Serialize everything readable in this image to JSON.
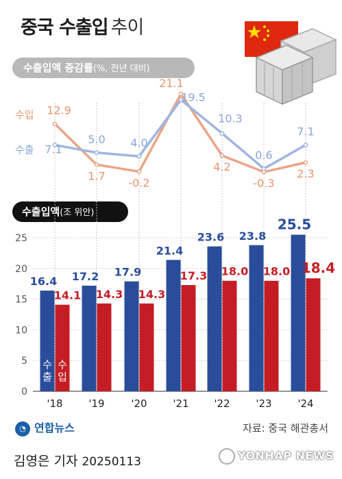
{
  "title": {
    "main": "중국 수출입",
    "sub": "추이"
  },
  "growth_section": {
    "label_strong": "수출입액 증감률",
    "label_light": "(%, 전년 대비)"
  },
  "value_section": {
    "label_strong": "수출입액",
    "label_light": "(조 위안)"
  },
  "legend": {
    "import": "수입",
    "export": "수출"
  },
  "source": "자료: 중국 해관총서",
  "agency": "연합뉴스",
  "byline": {
    "name": "김영은 기자",
    "date": "20250113"
  },
  "watermark": "YONHAP NEWS",
  "colors": {
    "export": "#2a4d9b",
    "import": "#c41e24",
    "export_line": "#9db6e0",
    "import_line": "#eba485"
  },
  "chart_data": [
    {
      "type": "line",
      "title": "수출입액 증감률",
      "ylabel": "%, 전년 대비",
      "x": [
        "'18",
        "'19",
        "'20",
        "'21",
        "'22",
        "'23",
        "'24"
      ],
      "series": [
        {
          "name": "수입",
          "values": [
            12.9,
            1.7,
            -0.2,
            21.1,
            4.2,
            -0.3,
            2.3
          ]
        },
        {
          "name": "수출",
          "values": [
            7.1,
            5.0,
            4.0,
            19.5,
            10.3,
            0.6,
            7.1
          ]
        }
      ],
      "data_labels": {
        "수입": [
          "12.9",
          "1.7",
          "-0.2",
          "21.1",
          "4.2",
          "-0.3",
          "2.3"
        ],
        "수출": [
          "7.1",
          "5.0",
          "4.0",
          "19.5",
          "10.3",
          "0.6",
          "7.1"
        ]
      },
      "ylim": [
        -2,
        23
      ],
      "grid": false
    },
    {
      "type": "bar",
      "title": "수출입액",
      "ylabel": "조 위안",
      "categories": [
        "'18",
        "'19",
        "'20",
        "'21",
        "'22",
        "'23",
        "'24"
      ],
      "series": [
        {
          "name": "수출",
          "values": [
            16.4,
            17.2,
            17.9,
            21.4,
            23.6,
            23.8,
            25.5
          ]
        },
        {
          "name": "수입",
          "values": [
            14.1,
            14.3,
            14.3,
            17.3,
            18.0,
            18.0,
            18.4
          ]
        }
      ],
      "data_labels": {
        "수출": [
          "16.4",
          "17.2",
          "17.9",
          "21.4",
          "23.6",
          "23.8",
          "25.5"
        ],
        "수입": [
          "14.1",
          "14.3",
          "14.3",
          "17.3",
          "18.0",
          "18.0",
          "18.4"
        ]
      },
      "yticks": [
        "0",
        "5",
        "10",
        "15",
        "20",
        "25"
      ],
      "ylim": [
        0,
        27
      ],
      "grid": true
    }
  ]
}
